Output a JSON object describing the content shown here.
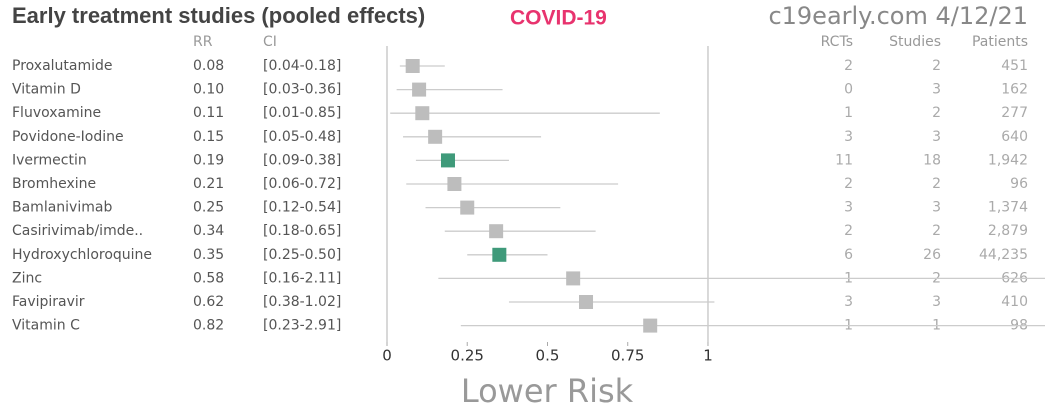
{
  "chart_data": {
    "type": "forest",
    "title": "Early treatment studies (pooled effects)",
    "subtitle": "COVID-19",
    "source": "c19early.com 4/12/21",
    "columns": {
      "rr": "RR",
      "ci": "CI",
      "rcts": "RCTs",
      "studies": "Studies",
      "patients": "Patients"
    },
    "categories": [
      "Proxalutamide",
      "Vitamin D",
      "Fluvoxamine",
      "Povidone-Iodine",
      "Ivermectin",
      "Bromhexine",
      "Bamlanivimab",
      "Casirivimab/imde..",
      "Hydroxychloroquine",
      "Zinc",
      "Favipiravir",
      "Vitamin C"
    ],
    "values": [
      0.08,
      0.1,
      0.11,
      0.15,
      0.19,
      0.21,
      0.25,
      0.34,
      0.35,
      0.58,
      0.62,
      0.82
    ],
    "value_labels": [
      "0.08",
      "0.10",
      "0.11",
      "0.15",
      "0.19",
      "0.21",
      "0.25",
      "0.34",
      "0.35",
      "0.58",
      "0.62",
      "0.82"
    ],
    "ci_low": [
      0.04,
      0.03,
      0.01,
      0.05,
      0.09,
      0.06,
      0.12,
      0.18,
      0.25,
      0.16,
      0.38,
      0.23
    ],
    "ci_high": [
      0.18,
      0.36,
      0.85,
      0.48,
      0.38,
      0.72,
      0.54,
      0.65,
      0.5,
      2.11,
      1.02,
      2.91
    ],
    "ci_labels": [
      "[0.04-0.18]",
      "[0.03-0.36]",
      "[0.01-0.85]",
      "[0.05-0.48]",
      "[0.09-0.38]",
      "[0.06-0.72]",
      "[0.12-0.54]",
      "[0.18-0.65]",
      "[0.25-0.50]",
      "[0.16-2.11]",
      "[0.38-1.02]",
      "[0.23-2.91]"
    ],
    "rcts": [
      2,
      0,
      1,
      3,
      11,
      2,
      3,
      2,
      6,
      1,
      3,
      1
    ],
    "studies": [
      2,
      3,
      2,
      3,
      18,
      2,
      3,
      2,
      26,
      2,
      3,
      1
    ],
    "patients": [
      "451",
      "162",
      "277",
      "640",
      "1,942",
      "96",
      "1,374",
      "2,879",
      "44,235",
      "626",
      "410",
      "98"
    ],
    "colors": [
      "#bdbdbd",
      "#bdbdbd",
      "#bdbdbd",
      "#bdbdbd",
      "#3f9a7a",
      "#bdbdbd",
      "#bdbdbd",
      "#bdbdbd",
      "#3f9a7a",
      "#bdbdbd",
      "#bdbdbd",
      "#bdbdbd"
    ],
    "xlabel": "Lower Risk",
    "xlim": [
      0,
      2.05
    ],
    "xticks": [
      0,
      0.25,
      0.5,
      0.75,
      1
    ],
    "null_line": 1
  }
}
